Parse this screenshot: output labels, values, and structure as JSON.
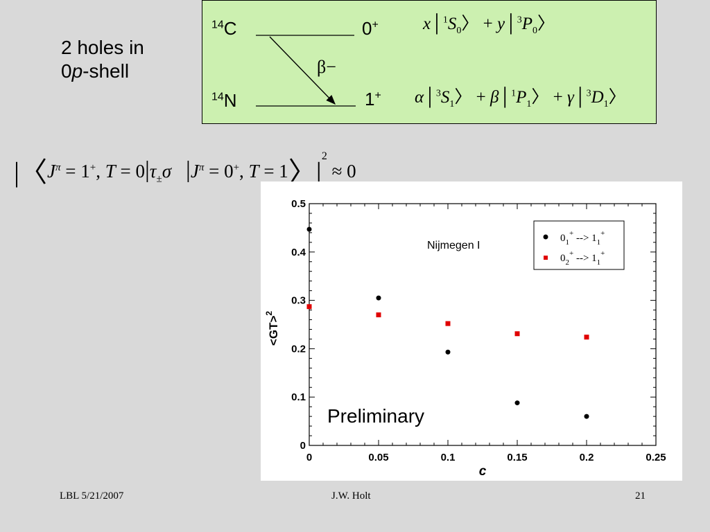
{
  "left_text": {
    "line1": "2 holes in",
    "line2_prefix": "0",
    "line2_italic": "p",
    "line2_suffix": "-shell"
  },
  "box": {
    "top_nucleus": {
      "mass": "14",
      "symbol": "C"
    },
    "bottom_nucleus": {
      "mass": "14",
      "symbol": "N"
    },
    "top_state": {
      "value": "0",
      "parity": "+"
    },
    "bottom_state": {
      "value": "1",
      "parity": "+"
    },
    "decay_label": "β−"
  },
  "chart_data": {
    "type": "scatter",
    "xlabel": "c",
    "ylabel": "<GT>2",
    "annotation_model": "Nijmegen I",
    "watermark": "Preliminary",
    "xlim": [
      0,
      0.25
    ],
    "ylim": [
      0,
      0.5
    ],
    "xticks": [
      "0",
      "0.05",
      "0.1",
      "0.15",
      "0.2",
      "0.25"
    ],
    "yticks": [
      "0",
      "0.1",
      "0.2",
      "0.3",
      "0.4",
      "0.5"
    ],
    "legend_position": "top-right",
    "series": [
      {
        "name": "0_1+ --> 1_1+",
        "color": "#000000",
        "marker": "circle",
        "x": [
          0,
          0.05,
          0.1,
          0.15,
          0.2
        ],
        "y": [
          0.447,
          0.305,
          0.193,
          0.088,
          0.06
        ]
      },
      {
        "name": "0_2+ --> 1_1+",
        "color": "#e00000",
        "marker": "square",
        "x": [
          0,
          0.05,
          0.1,
          0.15,
          0.2
        ],
        "y": [
          0.287,
          0.27,
          0.252,
          0.231,
          0.224
        ]
      }
    ]
  },
  "footer": {
    "left": "LBL 5/21/2007",
    "center": "J.W. Holt",
    "right": "21"
  }
}
